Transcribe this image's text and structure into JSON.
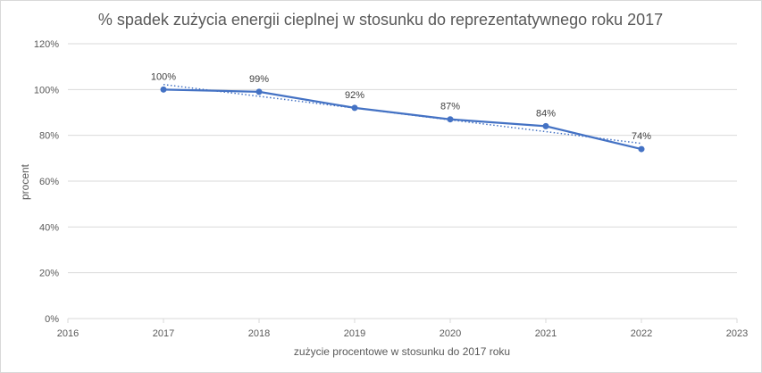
{
  "chart_data": {
    "type": "line",
    "title": "% spadek zużycia energii cieplnej w stosunku do reprezentatywnego roku 2017",
    "xlabel": "zużycie procentowe  w stosunku do 2017 roku",
    "ylabel": "procent",
    "x": [
      2017,
      2018,
      2019,
      2020,
      2021,
      2022
    ],
    "values": [
      100,
      99,
      92,
      87,
      84,
      74
    ],
    "data_labels": [
      "100%",
      "99%",
      "92%",
      "87%",
      "84%",
      "74%"
    ],
    "trendline": {
      "type": "linear",
      "style": "dotted"
    },
    "xlim": [
      2016,
      2023
    ],
    "ylim": [
      0,
      120
    ],
    "x_ticks": [
      "2016",
      "2017",
      "2018",
      "2019",
      "2020",
      "2021",
      "2022",
      "2023"
    ],
    "y_ticks": [
      "0%",
      "20%",
      "40%",
      "60%",
      "80%",
      "100%",
      "120%"
    ],
    "grid": true,
    "legend": "none",
    "colors": {
      "series": "#4472c4",
      "grid": "#d9d9d9",
      "text": "#595959"
    }
  }
}
